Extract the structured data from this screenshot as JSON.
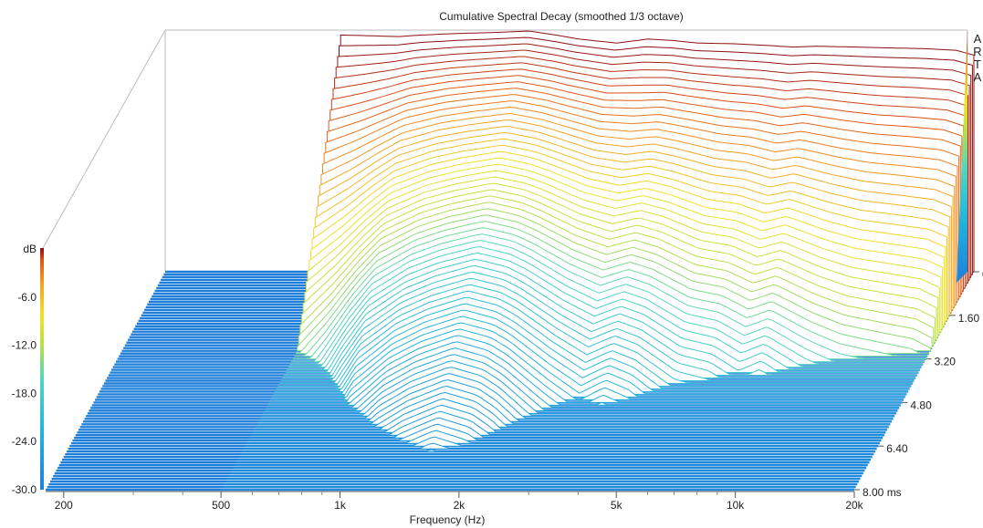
{
  "chart_data": {
    "type": "waterfall",
    "title": "Cumulative Spectral Decay (smoothed 1/3 octave)",
    "xlabel": "Frequency (Hz)",
    "zlabel": "dB",
    "brand": "ARTA",
    "x_scale": "log",
    "x_range_hz": [
      180,
      20000
    ],
    "x_ticks": [
      {
        "hz": 200,
        "label": "200"
      },
      {
        "hz": 500,
        "label": "500"
      },
      {
        "hz": 1000,
        "label": "1k"
      },
      {
        "hz": 2000,
        "label": "2k"
      },
      {
        "hz": 5000,
        "label": "5k"
      },
      {
        "hz": 10000,
        "label": "10k"
      },
      {
        "hz": 20000,
        "label": "20k"
      }
    ],
    "z_range_db": [
      -30,
      0
    ],
    "z_ticks": [
      {
        "db": 0,
        "label": "dB"
      },
      {
        "db": -6,
        "label": "-6.0"
      },
      {
        "db": -12,
        "label": "-12.0"
      },
      {
        "db": -18,
        "label": "-18.0"
      },
      {
        "db": -24,
        "label": "-24.0"
      },
      {
        "db": -30,
        "label": "-30.0"
      }
    ],
    "time_range_ms": [
      0,
      8.0
    ],
    "time_ticks": [
      {
        "ms": 0,
        "label": "0"
      },
      {
        "ms": 1.6,
        "label": "1.60"
      },
      {
        "ms": 3.2,
        "label": "3.20"
      },
      {
        "ms": 4.8,
        "label": "4.80"
      },
      {
        "ms": 6.4,
        "label": "6.40"
      },
      {
        "ms": 8.0,
        "label": "8.00 ms"
      }
    ],
    "slices_ms": [
      0,
      0.1,
      0.2,
      0.3,
      0.4,
      0.5,
      0.6,
      0.7,
      0.8,
      0.9,
      1.0,
      1.1,
      1.2,
      1.3,
      1.4,
      1.5,
      1.6,
      1.7,
      1.8,
      1.9,
      2.0,
      2.1,
      2.2,
      2.3,
      2.4,
      2.5,
      2.6,
      2.7,
      2.8,
      2.9,
      3.0,
      3.1,
      3.2,
      3.3,
      3.4,
      3.5,
      3.6,
      3.7,
      3.8,
      3.9,
      4.0,
      4.1,
      4.2,
      4.3,
      4.4,
      4.5,
      4.6,
      4.7,
      4.8,
      4.9,
      5.0,
      5.1,
      5.2,
      5.3,
      5.4,
      5.5,
      5.6,
      5.7,
      5.8,
      5.9,
      6.0,
      6.1,
      6.2,
      6.3,
      6.4,
      6.5,
      6.6,
      6.7,
      6.8,
      6.9,
      7.0,
      7.1,
      7.2,
      7.3,
      7.4,
      7.5,
      7.6,
      7.7,
      7.8,
      7.9,
      8.0
    ],
    "freq_points_hz": [
      500,
      600,
      700,
      800,
      1000,
      1200,
      1500,
      1800,
      2000,
      2500,
      3000,
      3500,
      4000,
      5000,
      6000,
      7000,
      8000,
      10000,
      12000,
      15000,
      18000,
      20000
    ],
    "profile_at_0ms_db": [
      -0.5,
      -0.6,
      -0.7,
      -0.5,
      -0.3,
      -0.2,
      0.0,
      -0.6,
      -1.0,
      -1.5,
      -1.0,
      -1.2,
      -1.5,
      -1.6,
      -1.8,
      -2.0,
      -1.9,
      -2.0,
      -2.1,
      -2.2,
      -2.4,
      -3.0
    ],
    "decay_db_per_ms": [
      10.0,
      8.5,
      7.0,
      6.0,
      5.2,
      4.8,
      4.5,
      4.6,
      4.8,
      5.5,
      6.2,
      5.8,
      6.0,
      6.8,
      7.0,
      7.5,
      7.2,
      8.0,
      8.5,
      8.8,
      9.0,
      9.2
    ],
    "colorscale": [
      "#1f7fd9",
      "#22b5dd",
      "#4fd6c2",
      "#b8e04a",
      "#f0e32a",
      "#f3a325",
      "#e1531b",
      "#8c1010"
    ],
    "floor_color": "#1f7fd9"
  }
}
